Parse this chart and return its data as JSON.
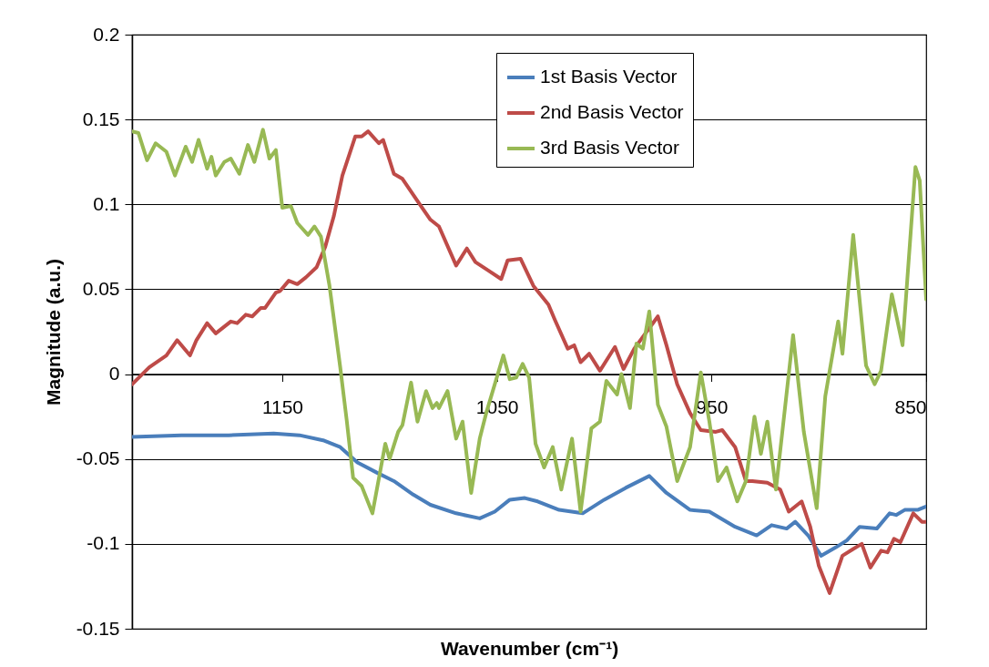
{
  "chart_data": {
    "type": "line",
    "xlabel": "Wavenumber (cm⁻¹)",
    "ylabel": "Magnitude (a.u.)",
    "xlim": [
      1220,
      850
    ],
    "xticks": [
      1150,
      1050,
      950,
      850
    ],
    "ylim": [
      -0.15,
      0.2
    ],
    "yticks": [
      -0.15,
      -0.1,
      -0.05,
      0,
      0.05,
      0.1,
      0.15,
      0.2
    ],
    "grid": "y",
    "legend": "top right",
    "series": [
      {
        "name": "1st Basis Vector",
        "color": "#4a7ebb",
        "x": [
          1220,
          1197,
          1175,
          1154,
          1142,
          1131,
          1123,
          1115,
          1106,
          1098,
          1089,
          1081,
          1069,
          1058,
          1051,
          1044,
          1037,
          1031,
          1021,
          1010,
          1000,
          990,
          979,
          971,
          960,
          951,
          939,
          929,
          922,
          915,
          911,
          905,
          899,
          892,
          887,
          881,
          873,
          867,
          864,
          860,
          854,
          850
        ],
        "values": [
          -0.037,
          -0.036,
          -0.036,
          -0.035,
          -0.036,
          -0.039,
          -0.043,
          -0.052,
          -0.058,
          -0.063,
          -0.071,
          -0.077,
          -0.082,
          -0.085,
          -0.081,
          -0.074,
          -0.073,
          -0.075,
          -0.08,
          -0.082,
          -0.074,
          -0.067,
          -0.06,
          -0.07,
          -0.08,
          -0.081,
          -0.09,
          -0.095,
          -0.089,
          -0.091,
          -0.087,
          -0.095,
          -0.107,
          -0.102,
          -0.098,
          -0.09,
          -0.091,
          -0.082,
          -0.083,
          -0.08,
          -0.08,
          -0.078
        ]
      },
      {
        "name": "2nd Basis Vector",
        "color": "#be4b48",
        "x": [
          1220,
          1212,
          1204,
          1199,
          1193,
          1190,
          1185,
          1181,
          1174,
          1171,
          1167,
          1164,
          1160,
          1158,
          1153,
          1151,
          1147,
          1143,
          1139,
          1134,
          1130,
          1126,
          1122,
          1116,
          1113,
          1110,
          1105,
          1103,
          1098,
          1094,
          1087,
          1081,
          1077,
          1069,
          1064,
          1060,
          1054,
          1048,
          1045,
          1039,
          1033,
          1026,
          1023,
          1017,
          1014,
          1011,
          1007,
          1002,
          995,
          991,
          986,
          975,
          971,
          966,
          960,
          955,
          948,
          945,
          939,
          934,
          931,
          924,
          918,
          914,
          908,
          904,
          900,
          895,
          889,
          884,
          880,
          876,
          871,
          868,
          865,
          862,
          856,
          852,
          850
        ],
        "values": [
          -0.006,
          0.004,
          0.011,
          0.02,
          0.011,
          0.02,
          0.03,
          0.024,
          0.031,
          0.03,
          0.035,
          0.034,
          0.039,
          0.039,
          0.048,
          0.049,
          0.055,
          0.053,
          0.057,
          0.063,
          0.075,
          0.093,
          0.117,
          0.14,
          0.14,
          0.143,
          0.136,
          0.138,
          0.118,
          0.115,
          0.102,
          0.091,
          0.087,
          0.064,
          0.074,
          0.066,
          0.061,
          0.056,
          0.067,
          0.068,
          0.052,
          0.041,
          0.032,
          0.015,
          0.017,
          0.007,
          0.012,
          0.002,
          0.016,
          0.003,
          0.015,
          0.034,
          0.017,
          -0.006,
          -0.023,
          -0.033,
          -0.034,
          -0.033,
          -0.043,
          -0.063,
          -0.063,
          -0.064,
          -0.068,
          -0.081,
          -0.075,
          -0.09,
          -0.113,
          -0.129,
          -0.107,
          -0.103,
          -0.1,
          -0.114,
          -0.104,
          -0.105,
          -0.097,
          -0.099,
          -0.082,
          -0.087,
          -0.087
        ]
      },
      {
        "name": "3rd Basis Vector",
        "color": "#98b954",
        "x": [
          1220,
          1217,
          1213,
          1209,
          1204,
          1200,
          1195,
          1192,
          1189,
          1185,
          1183,
          1181,
          1177,
          1174,
          1170,
          1166,
          1163,
          1159,
          1156,
          1153,
          1150,
          1146,
          1143,
          1138,
          1135,
          1132,
          1128,
          1123,
          1120,
          1117,
          1113,
          1108,
          1102,
          1100,
          1096,
          1094,
          1090,
          1087,
          1083,
          1080,
          1078,
          1077,
          1073,
          1069,
          1066,
          1062,
          1058,
          1055,
          1047,
          1044,
          1041,
          1038,
          1035,
          1032,
          1028,
          1024,
          1020,
          1015,
          1011,
          1006,
          1002,
          999,
          994,
          992,
          988,
          985,
          982,
          979,
          975,
          971,
          966,
          960,
          955,
          951,
          947,
          943,
          938,
          934,
          930,
          927,
          924,
          920,
          912,
          907,
          901,
          897,
          891,
          889,
          884,
          878,
          874,
          871,
          866,
          861,
          855,
          853,
          850
        ],
        "values": [
          0.143,
          0.142,
          0.126,
          0.136,
          0.131,
          0.117,
          0.134,
          0.125,
          0.138,
          0.121,
          0.128,
          0.117,
          0.125,
          0.127,
          0.118,
          0.135,
          0.125,
          0.144,
          0.127,
          0.132,
          0.098,
          0.099,
          0.089,
          0.082,
          0.087,
          0.081,
          0.052,
          0.004,
          -0.027,
          -0.061,
          -0.066,
          -0.082,
          -0.041,
          -0.05,
          -0.034,
          -0.03,
          -0.005,
          -0.028,
          -0.01,
          -0.02,
          -0.017,
          -0.02,
          -0.01,
          -0.038,
          -0.028,
          -0.07,
          -0.038,
          -0.023,
          0.011,
          -0.003,
          -0.002,
          0.006,
          -0.002,
          -0.041,
          -0.055,
          -0.043,
          -0.068,
          -0.038,
          -0.081,
          -0.032,
          -0.028,
          -0.004,
          -0.012,
          0.0,
          -0.02,
          0.018,
          0.015,
          0.037,
          -0.018,
          -0.031,
          -0.063,
          -0.043,
          0.001,
          -0.028,
          -0.063,
          -0.055,
          -0.075,
          -0.063,
          -0.025,
          -0.047,
          -0.028,
          -0.068,
          0.023,
          -0.034,
          -0.079,
          -0.013,
          0.031,
          0.012,
          0.082,
          0.005,
          -0.006,
          0.002,
          0.047,
          0.017,
          0.122,
          0.114,
          0.044
        ]
      }
    ]
  }
}
